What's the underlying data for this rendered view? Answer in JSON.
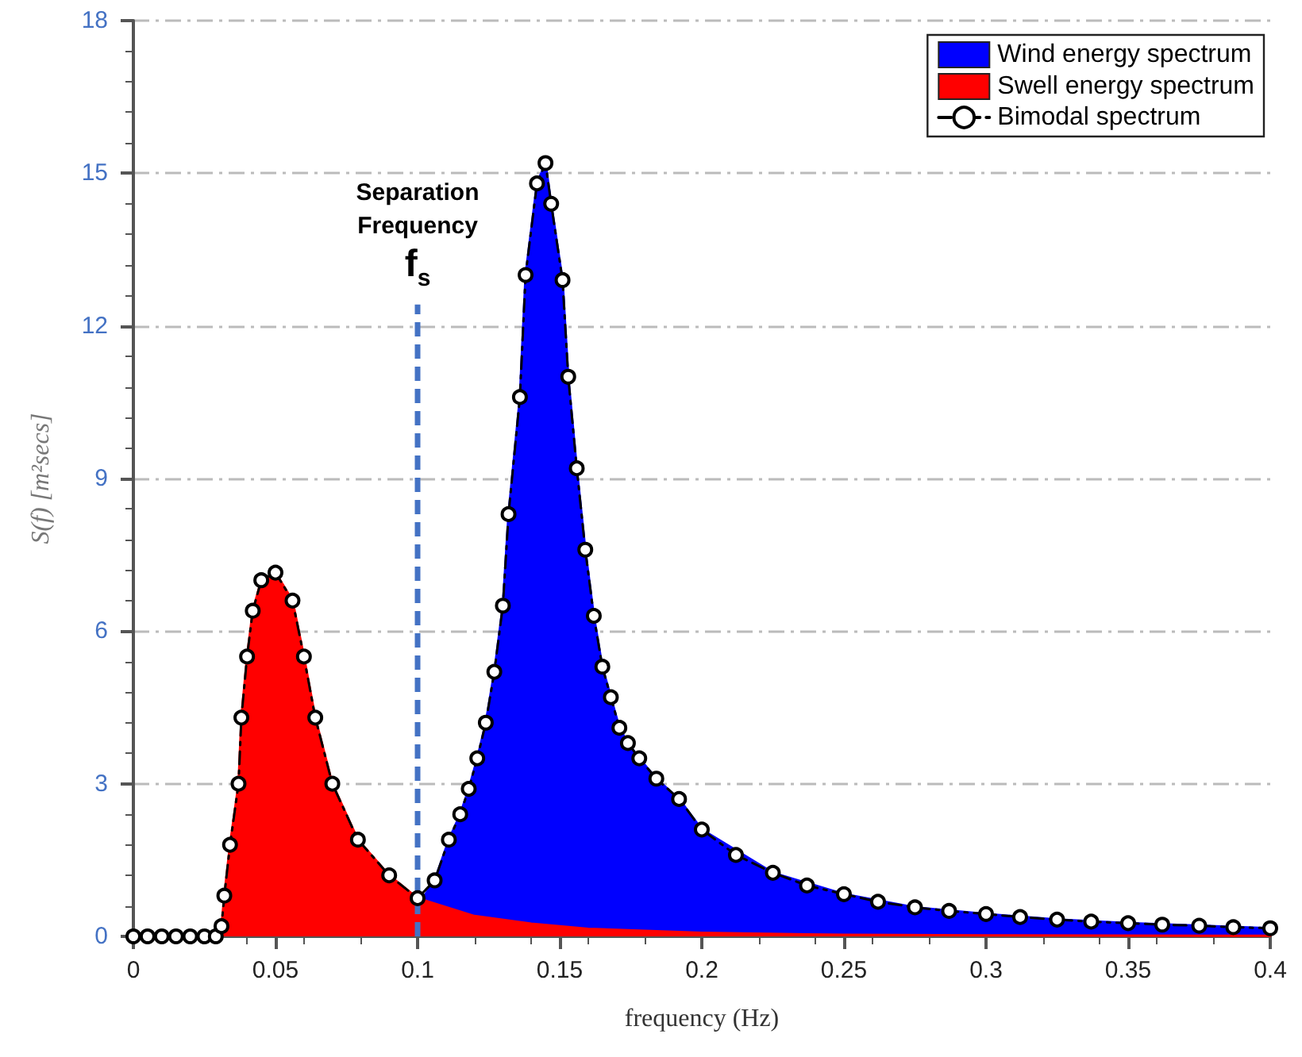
{
  "chart_data": {
    "type": "area",
    "xlabel": "frequency (Hz)",
    "ylabel": "S(f) [m²secs]",
    "xlim": [
      0,
      0.4
    ],
    "xticks": [
      0,
      0.05,
      0.1,
      0.15,
      0.2,
      0.25,
      0.3,
      0.35,
      0.4
    ],
    "ylim": [
      0,
      18
    ],
    "yticks": [
      0,
      3,
      6,
      9,
      12,
      15,
      18
    ],
    "grid": "y",
    "legend": "top right",
    "ref_lines": [
      {
        "axis": "x",
        "value": 0.1,
        "label": "Separation Frequency f$_{s}$",
        "color": "#4472c4",
        "line_style": "dashed"
      }
    ],
    "series": [
      {
        "name": "Wind energy spectrum",
        "color": "#0000ff",
        "x": [
          0.1,
          0.106,
          0.111,
          0.115,
          0.118,
          0.121,
          0.124,
          0.127,
          0.13,
          0.132,
          0.136,
          0.138,
          0.142,
          0.145,
          0.147,
          0.151,
          0.153,
          0.156,
          0.159,
          0.162,
          0.165,
          0.168,
          0.171,
          0.174,
          0.178,
          0.184,
          0.192,
          0.2,
          0.225,
          0.25,
          0.275,
          0.3,
          0.325,
          0.35,
          0.375,
          0.4
        ],
        "values": [
          0.6,
          1.1,
          1.9,
          2.4,
          2.9,
          3.5,
          4.2,
          5.2,
          6.5,
          8.3,
          10.6,
          13.0,
          14.8,
          15.2,
          14.4,
          12.9,
          11.0,
          9.2,
          7.6,
          6.3,
          5.3,
          4.7,
          4.1,
          3.8,
          3.5,
          3.1,
          2.7,
          2.1,
          1.25,
          0.83,
          0.57,
          0.44,
          0.33,
          0.26,
          0.21,
          0.16
        ]
      },
      {
        "name": "Swell energy spectrum",
        "color": "#ff0000",
        "x": [
          0,
          0.01,
          0.02,
          0.029,
          0.031,
          0.032,
          0.034,
          0.037,
          0.038,
          0.04,
          0.042,
          0.045,
          0.05,
          0.056,
          0.06,
          0.064,
          0.07,
          0.079,
          0.09,
          0.1,
          0.12,
          0.14,
          0.16,
          0.2,
          0.25,
          0.3,
          0.4
        ],
        "values": [
          0,
          0,
          0,
          0,
          0.2,
          0.8,
          1.8,
          3.0,
          4.3,
          5.5,
          6.4,
          7.0,
          7.15,
          6.6,
          5.5,
          4.3,
          3.0,
          1.9,
          1.2,
          0.75,
          0.4,
          0.25,
          0.15,
          0.07,
          0.03,
          0.02,
          0.01
        ]
      },
      {
        "name": "Bimodal spectrum",
        "type": "line",
        "color": "#000000",
        "marker": "circle",
        "line_style": "dashed",
        "x": [
          0,
          0.005,
          0.01,
          0.015,
          0.02,
          0.025,
          0.029,
          0.031,
          0.032,
          0.034,
          0.037,
          0.038,
          0.04,
          0.042,
          0.045,
          0.05,
          0.056,
          0.06,
          0.064,
          0.07,
          0.079,
          0.09,
          0.1,
          0.106,
          0.111,
          0.115,
          0.118,
          0.121,
          0.124,
          0.127,
          0.13,
          0.132,
          0.136,
          0.138,
          0.142,
          0.145,
          0.147,
          0.151,
          0.153,
          0.156,
          0.159,
          0.162,
          0.165,
          0.168,
          0.171,
          0.174,
          0.178,
          0.184,
          0.192,
          0.2,
          0.212,
          0.225,
          0.237,
          0.25,
          0.262,
          0.275,
          0.287,
          0.3,
          0.312,
          0.325,
          0.337,
          0.35,
          0.362,
          0.375,
          0.387,
          0.4
        ],
        "values": [
          0,
          0,
          0,
          0,
          0,
          0,
          0,
          0.2,
          0.8,
          1.8,
          3.0,
          4.3,
          5.5,
          6.4,
          7.0,
          7.15,
          6.6,
          5.5,
          4.3,
          3.0,
          1.9,
          1.2,
          0.75,
          1.1,
          1.9,
          2.4,
          2.9,
          3.5,
          4.2,
          5.2,
          6.5,
          8.3,
          10.6,
          13.0,
          14.8,
          15.2,
          14.4,
          12.9,
          11.0,
          9.2,
          7.6,
          6.3,
          5.3,
          4.7,
          4.1,
          3.8,
          3.5,
          3.1,
          2.7,
          2.1,
          1.6,
          1.25,
          1.0,
          0.83,
          0.68,
          0.57,
          0.5,
          0.44,
          0.38,
          0.33,
          0.29,
          0.26,
          0.23,
          0.21,
          0.18,
          0.16
        ]
      }
    ]
  }
}
